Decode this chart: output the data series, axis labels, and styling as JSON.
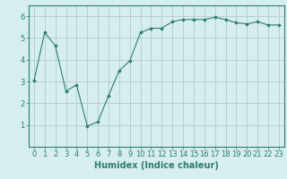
{
  "x": [
    0,
    1,
    2,
    3,
    4,
    5,
    6,
    7,
    8,
    9,
    10,
    11,
    12,
    13,
    14,
    15,
    16,
    17,
    18,
    19,
    20,
    21,
    22,
    23
  ],
  "y": [
    3.05,
    5.25,
    4.65,
    2.55,
    2.85,
    0.95,
    1.15,
    2.35,
    3.5,
    3.95,
    5.25,
    5.45,
    5.45,
    5.75,
    5.85,
    5.85,
    5.85,
    5.95,
    5.85,
    5.7,
    5.65,
    5.75,
    5.6,
    5.6
  ],
  "xlim": [
    -0.5,
    23.5
  ],
  "ylim": [
    0,
    6.5
  ],
  "xticks": [
    0,
    1,
    2,
    3,
    4,
    5,
    6,
    7,
    8,
    9,
    10,
    11,
    12,
    13,
    14,
    15,
    16,
    17,
    18,
    19,
    20,
    21,
    22,
    23
  ],
  "yticks": [
    1,
    2,
    3,
    4,
    5,
    6
  ],
  "xlabel": "Humidex (Indice chaleur)",
  "line_color": "#2e7d6e",
  "marker": "D",
  "marker_size": 1.8,
  "bg_color": "#d6eeee",
  "grid_color": "#b0cccc",
  "xlabel_fontsize": 7,
  "tick_fontsize": 6
}
